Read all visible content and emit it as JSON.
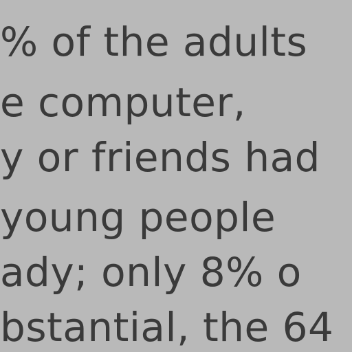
{
  "document": {
    "lines": [
      "",
      "% of the adults",
      "e  computer,",
      "y or friends had",
      "  young  people",
      "ady; only 8% o",
      "bstantial, the 64"
    ]
  }
}
